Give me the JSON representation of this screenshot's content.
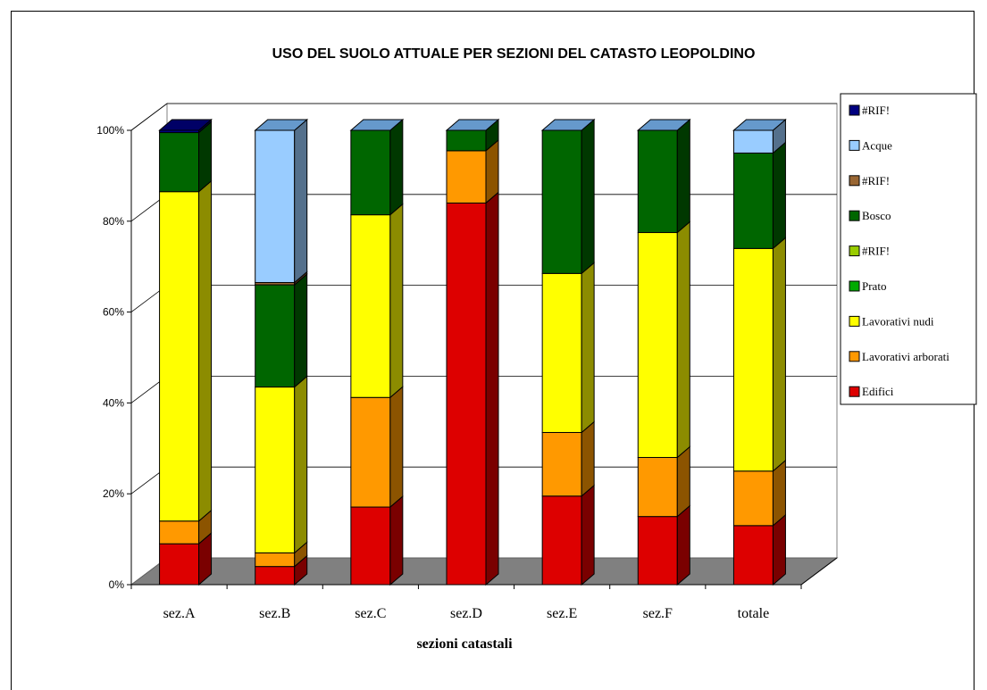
{
  "chart_data": {
    "type": "bar",
    "stacked": true,
    "percent_stacked": true,
    "title": "USO DEL SUOLO ATTUALE PER SEZIONI DEL CATASTO LEOPOLDINO",
    "xlabel": "sezioni catastali",
    "ylabel": "",
    "ylim": [
      0,
      100
    ],
    "y_ticks": [
      "0%",
      "20%",
      "40%",
      "60%",
      "80%",
      "100%"
    ],
    "grid": true,
    "legend_position": "right",
    "categories": [
      "sez.A",
      "sez.B",
      "sez.C",
      "sez.D",
      "sez.E",
      "sez.F",
      "totale"
    ],
    "series": [
      {
        "name": "Edifici",
        "color": "#dd0000",
        "values": [
          9,
          4,
          17,
          84,
          19.5,
          15,
          13
        ]
      },
      {
        "name": "Lavorativi arborati",
        "color": "#ff9900",
        "values": [
          5,
          3,
          24,
          11.5,
          14,
          13,
          12
        ]
      },
      {
        "name": "Lavorativi nudi",
        "color": "#ffff00",
        "values": [
          72.5,
          36.5,
          40,
          0,
          35,
          49.5,
          49
        ]
      },
      {
        "name": "Prato",
        "color": "#00aa00",
        "values": [
          0,
          0,
          0,
          0,
          0,
          0,
          0
        ]
      },
      {
        "name": "#RIF!",
        "color": "#99cc00",
        "values": [
          0,
          0,
          0,
          0,
          0,
          0,
          0
        ]
      },
      {
        "name": "Bosco",
        "color": "#006600",
        "values": [
          13,
          22.5,
          18.5,
          4.5,
          31.5,
          22.5,
          21
        ]
      },
      {
        "name": "#RIF!",
        "color": "#996633",
        "values": [
          0,
          0.5,
          0,
          0,
          0,
          0,
          0
        ]
      },
      {
        "name": "Acque",
        "color": "#99ccff",
        "values": [
          0,
          33.5,
          0,
          0,
          0,
          0,
          5
        ]
      },
      {
        "name": "#RIF!",
        "color": "#000080",
        "values": [
          0.5,
          0,
          0,
          0,
          0,
          0,
          0
        ]
      }
    ]
  }
}
